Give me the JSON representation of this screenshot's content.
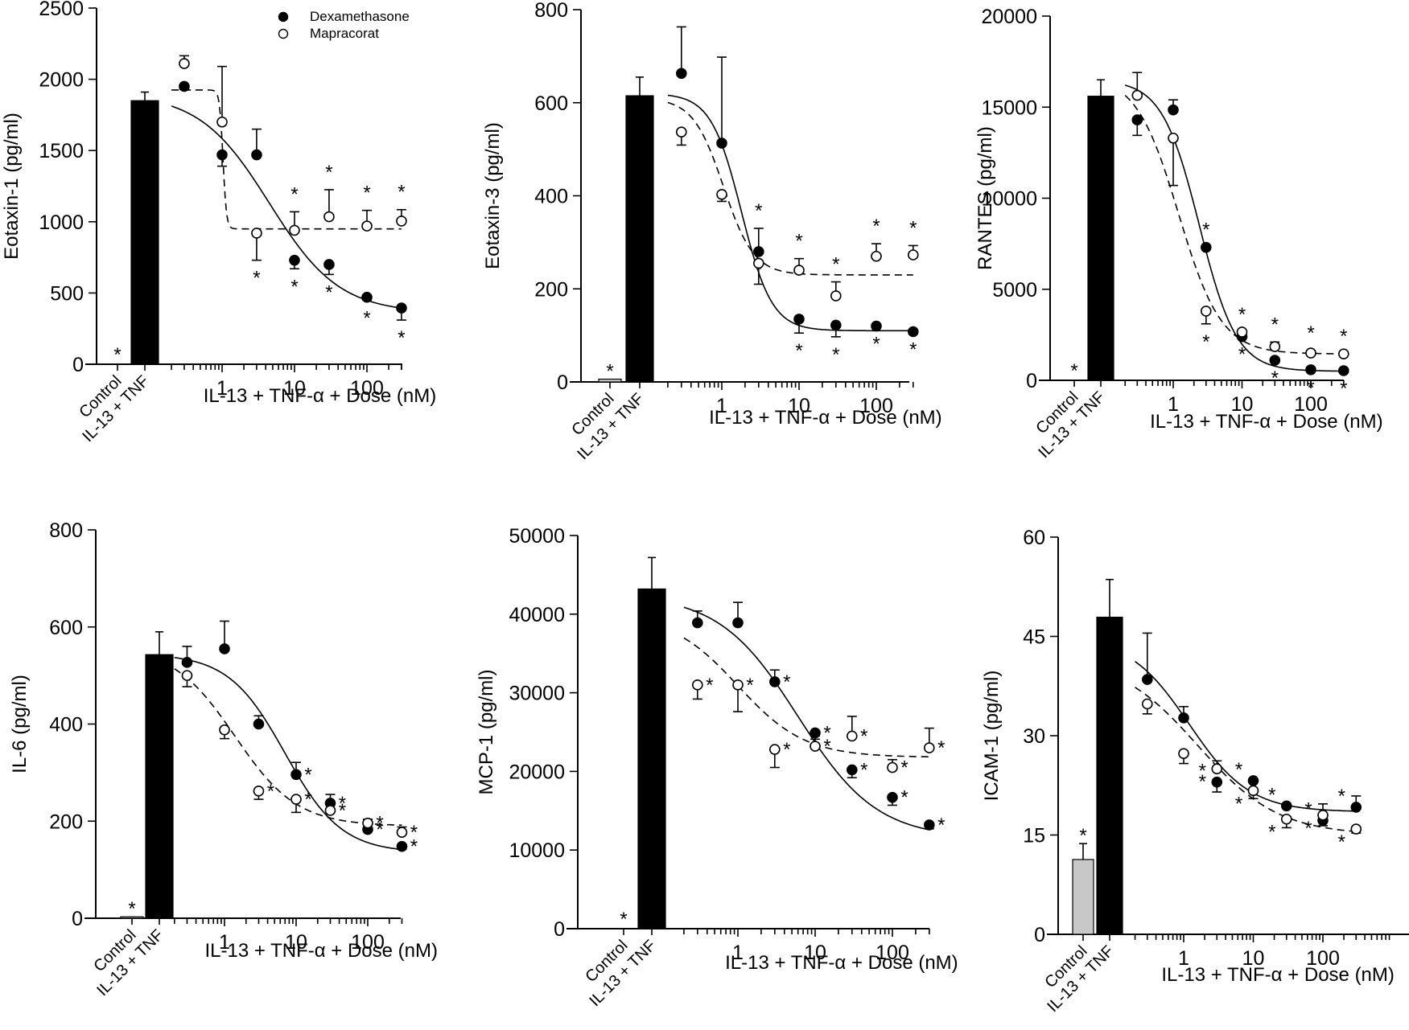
{
  "chart_data": [
    {
      "type": "scatter",
      "title": "",
      "ylabel": "Eotaxin-1 (pg/ml)",
      "xlabel": "IL-13 + TNF-α + Dose (nM)",
      "ylim": [
        0,
        2500
      ],
      "yticks": [
        0,
        500,
        1000,
        1500,
        2000,
        2500
      ],
      "xscale": "log",
      "xticks": [
        1,
        10,
        100
      ],
      "xtick_labels": [
        "1",
        "10",
        "100"
      ],
      "legend": {
        "position": "top-right",
        "entries": [
          "Dexamethasone",
          "Mapracorat"
        ]
      },
      "bars": [
        {
          "category": "Control",
          "value": 0,
          "error": 0,
          "color": "#c8c8c8",
          "star": true
        },
        {
          "category": "IL-13 + TNF",
          "value": 1850,
          "error": 60,
          "color": "#000000",
          "star": false
        }
      ],
      "x": [
        0.3,
        1,
        3,
        10,
        30,
        100,
        300
      ],
      "series": [
        {
          "name": "Dexamethasone",
          "marker": "filled",
          "line": "solid",
          "values": [
            1950,
            1470,
            1470,
            730,
            700,
            470,
            395
          ],
          "errors": [
            -20,
            -80,
            180,
            -60,
            -70,
            -20,
            -85
          ],
          "stars": [
            "",
            "",
            "",
            "below",
            "below",
            "below",
            "below"
          ],
          "fit": {
            "top": 1900,
            "bottom": 360,
            "ec50": 4.5,
            "hill": 0.9
          }
        },
        {
          "name": "Mapracorat",
          "marker": "open",
          "line": "dashed",
          "values": [
            2110,
            1700,
            920,
            940,
            1035,
            970,
            1005
          ],
          "errors": [
            55,
            390,
            -190,
            130,
            190,
            110,
            80
          ],
          "stars": [
            "",
            "",
            "below",
            "above",
            "above",
            "above",
            "above"
          ],
          "fit": {
            "top": 1925,
            "bottom": 950,
            "ec50": 1.03,
            "hill": 18
          }
        }
      ]
    },
    {
      "type": "scatter",
      "title": "",
      "ylabel": "Eotaxin-3 (pg/ml)",
      "xlabel": "IL-13 + TNF-α + Dose (nM)",
      "ylim": [
        0,
        800
      ],
      "yticks": [
        0,
        200,
        400,
        600,
        800
      ],
      "xscale": "log",
      "xticks": [
        1,
        10,
        100
      ],
      "xtick_labels": [
        "1",
        "10",
        "100"
      ],
      "bars": [
        {
          "category": "Control",
          "value": 6,
          "error": 0,
          "color": "#c8c8c8",
          "star": true
        },
        {
          "category": "IL-13 + TNF",
          "value": 615,
          "error": 40,
          "color": "#000000",
          "star": false
        }
      ],
      "x": [
        0.3,
        1,
        3,
        10,
        30,
        100,
        300
      ],
      "series": [
        {
          "name": "Dexamethasone",
          "marker": "filled",
          "line": "solid",
          "values": [
            663,
            513,
            280,
            135,
            122,
            120,
            108
          ],
          "errors": [
            100,
            185,
            50,
            -30,
            -25,
            0,
            0
          ],
          "stars": [
            "",
            "",
            "both",
            "below",
            "below",
            "below",
            "below"
          ],
          "fit": {
            "top": 620,
            "bottom": 110,
            "ec50": 1.8,
            "hill": 2.2
          }
        },
        {
          "name": "Mapracorat",
          "marker": "open",
          "line": "dashed",
          "values": [
            537,
            403,
            255,
            240,
            185,
            270,
            273
          ],
          "errors": [
            -28,
            -15,
            -45,
            25,
            30,
            27,
            20
          ],
          "stars": [
            "",
            "",
            "",
            "above",
            "above",
            "above",
            "above"
          ],
          "fit": {
            "top": 610,
            "bottom": 230,
            "ec50": 1.05,
            "hill": 2.2
          }
        }
      ]
    },
    {
      "type": "scatter",
      "title": "",
      "ylabel": "RANTES (pg/ml)",
      "xlabel": "IL-13 + TNF-α + Dose (nM)",
      "ylim": [
        0,
        20000
      ],
      "yticks": [
        0,
        5000,
        10000,
        15000,
        20000
      ],
      "xscale": "log",
      "xticks": [
        1,
        10,
        100
      ],
      "xtick_labels": [
        "1",
        "10",
        "100"
      ],
      "bars": [
        {
          "category": "Control",
          "value": 0,
          "error": 0,
          "color": "#c8c8c8",
          "star": true
        },
        {
          "category": "IL-13 + TNF",
          "value": 15600,
          "error": 900,
          "color": "#000000",
          "star": false
        }
      ],
      "x": [
        0.3,
        1,
        3,
        10,
        30,
        100,
        300
      ],
      "series": [
        {
          "name": "Dexamethasone",
          "marker": "filled",
          "line": "solid",
          "values": [
            14300,
            14850,
            7300,
            2400,
            1100,
            580,
            530
          ],
          "errors": [
            -850,
            550,
            0,
            250,
            0,
            0,
            0
          ],
          "stars": [
            "",
            "",
            "above",
            "below",
            "below",
            "below",
            "below"
          ],
          "fit": {
            "top": 16500,
            "bottom": 500,
            "ec50": 2.4,
            "hill": 1.6
          }
        },
        {
          "name": "Mapracorat",
          "marker": "open",
          "line": "dashed",
          "values": [
            15650,
            13300,
            3800,
            2650,
            1850,
            1500,
            1450
          ],
          "errors": [
            1250,
            -2600,
            -700,
            -250,
            250,
            130,
            0
          ],
          "stars": [
            "",
            "",
            "below",
            "above",
            "above",
            "above",
            "above"
          ],
          "fit": {
            "top": 16800,
            "bottom": 1450,
            "ec50": 1.2,
            "hill": 1.4
          }
        }
      ]
    },
    {
      "type": "scatter",
      "title": "",
      "ylabel": "IL-6 (pg/ml)",
      "xlabel": "IL-13 + TNF-α + Dose (nM)",
      "ylim": [
        0,
        800
      ],
      "yticks": [
        0,
        200,
        400,
        600,
        800
      ],
      "xscale": "log",
      "xticks": [
        1,
        10,
        100
      ],
      "xtick_labels": [
        "1",
        "10",
        "100"
      ],
      "bars": [
        {
          "category": "Control",
          "value": 3,
          "error": 0,
          "color": "#c8c8c8",
          "star": true
        },
        {
          "category": "IL-13 + TNF",
          "value": 543,
          "error": 47,
          "color": "#000000",
          "star": false
        }
      ],
      "x": [
        0.3,
        1,
        3,
        10,
        30,
        100,
        300
      ],
      "series": [
        {
          "name": "Dexamethasone",
          "marker": "filled",
          "line": "solid",
          "values": [
            527,
            555,
            400,
            296,
            237,
            183,
            148
          ],
          "errors": [
            33,
            57,
            17,
            25,
            18,
            0,
            -6
          ],
          "stars": [
            "",
            "",
            "",
            "right",
            "right",
            "right",
            "right"
          ],
          "fit": {
            "top": 545,
            "bottom": 135,
            "ec50": 7,
            "hill": 1.1
          }
        },
        {
          "name": "Mapracorat",
          "marker": "open",
          "line": "dashed",
          "values": [
            500,
            388,
            262,
            245,
            222,
            196,
            177
          ],
          "errors": [
            -23,
            -18,
            -17,
            -27,
            0,
            8,
            11
          ],
          "stars": [
            "",
            "",
            "right",
            "right",
            "right",
            "right",
            "right"
          ],
          "fit": {
            "top": 560,
            "bottom": 190,
            "ec50": 1.4,
            "hill": 1.0
          }
        }
      ]
    },
    {
      "type": "scatter",
      "title": "",
      "ylabel": "MCP-1 (pg/ml)",
      "xlabel": "IL-13 + TNF-α + Dose (nM)",
      "ylim": [
        0,
        50000
      ],
      "yticks": [
        0,
        10000,
        20000,
        30000,
        40000,
        50000
      ],
      "xscale": "log",
      "xticks": [
        1,
        10,
        100
      ],
      "xtick_labels": [
        "1",
        "10",
        "100"
      ],
      "bars": [
        {
          "category": "Control",
          "value": 0,
          "error": 0,
          "color": "#c8c8c8",
          "star": true
        },
        {
          "category": "IL-13 + TNF",
          "value": 43200,
          "error": 4000,
          "color": "#000000",
          "star": false
        }
      ],
      "x": [
        0.3,
        1,
        3,
        10,
        30,
        100,
        300
      ],
      "series": [
        {
          "name": "Dexamethasone",
          "marker": "filled",
          "line": "solid",
          "values": [
            38900,
            38900,
            31400,
            24900,
            20200,
            16700,
            13200
          ],
          "errors": [
            1500,
            2600,
            1500,
            -800,
            -1000,
            -1000,
            -500
          ],
          "stars": [
            "",
            "",
            "right",
            "right",
            "right",
            "right",
            "right"
          ],
          "fit": {
            "top": 42500,
            "bottom": 11500,
            "ec50": 6,
            "hill": 0.85
          }
        },
        {
          "name": "Mapracorat",
          "marker": "open",
          "line": "dashed",
          "values": [
            31000,
            31000,
            22800,
            23200,
            24500,
            20500,
            23000
          ],
          "errors": [
            -1800,
            -3400,
            -2300,
            1300,
            2500,
            1000,
            2500
          ],
          "stars": [
            "right",
            "right",
            "right",
            "right",
            "right",
            "right",
            "right"
          ],
          "fit": {
            "top": 40000,
            "bottom": 21800,
            "ec50": 1.0,
            "hill": 1.0
          }
        }
      ]
    },
    {
      "type": "scatter",
      "title": "",
      "ylabel": "ICAM-1 (pg/ml)",
      "xlabel": "IL-13 + TNF-α + Dose (nM)",
      "ylim": [
        0,
        60
      ],
      "yticks": [
        0,
        15,
        30,
        45,
        60
      ],
      "xscale": "log",
      "xticks": [
        1,
        10,
        100
      ],
      "xtick_labels": [
        "1",
        "10",
        "100"
      ],
      "bars": [
        {
          "category": "Control",
          "value": 11.3,
          "error": 2.4,
          "color": "#c8c8c8",
          "star": true
        },
        {
          "category": "IL-13 + TNF",
          "value": 47.9,
          "error": 5.7,
          "color": "#000000",
          "star": false
        }
      ],
      "x": [
        0.3,
        1,
        3,
        10,
        30,
        100,
        300
      ],
      "series": [
        {
          "name": "Dexamethasone",
          "marker": "filled",
          "line": "solid",
          "values": [
            38.5,
            32.7,
            23.0,
            23.2,
            19.4,
            17.2,
            19.2
          ],
          "errors": [
            7.0,
            1.7,
            -1.5,
            0,
            0,
            -0.8,
            1.7
          ],
          "stars": [
            "",
            "",
            "left-above",
            "left-above",
            "left-above",
            "left-above",
            "left-above"
          ],
          "fit": {
            "top": 45,
            "bottom": 18.5,
            "ec50": 1.2,
            "hill": 1.0
          }
        },
        {
          "name": "Mapracorat",
          "marker": "open",
          "line": "dashed",
          "values": [
            34.8,
            27.3,
            25.0,
            21.7,
            17.4,
            18.0,
            15.9
          ],
          "errors": [
            -1.5,
            -1.5,
            1.2,
            -1.2,
            -1.3,
            1.7,
            -0.6
          ],
          "stars": [
            "",
            "",
            "left-below",
            "left-below",
            "left-below",
            "left-below",
            "left-below"
          ],
          "fit": {
            "top": 42,
            "bottom": 15.0,
            "ec50": 1.6,
            "hill": 0.75
          }
        }
      ]
    }
  ]
}
